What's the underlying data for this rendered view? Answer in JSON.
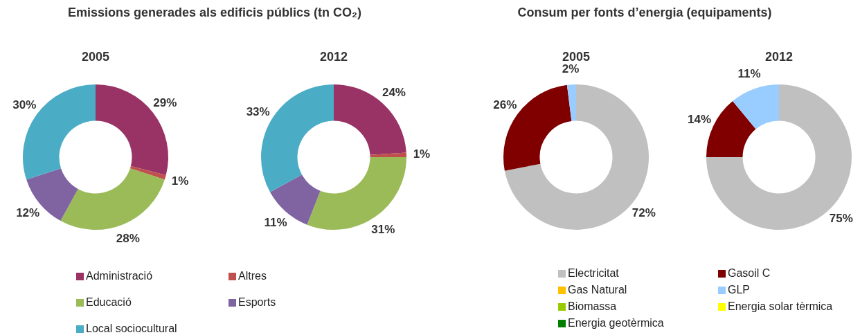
{
  "chart_data": [
    {
      "type": "donut",
      "title": "Emissions generades als edificis públics (tn CO₂)",
      "categories": [
        "Administració",
        "Altres",
        "Educació",
        "Esports",
        "Local sociocultural"
      ],
      "colors": [
        "#993366",
        "#c0504d",
        "#9bbb59",
        "#8064a2",
        "#4bacc6"
      ],
      "legend": "bottom",
      "series": [
        {
          "name": "2005",
          "values": [
            29,
            1,
            28,
            12,
            30
          ],
          "value_labels": [
            "29%",
            "1%",
            "28%",
            "12%",
            "30%"
          ]
        },
        {
          "name": "2012",
          "values": [
            24,
            1,
            31,
            11,
            33
          ],
          "value_labels": [
            "24%",
            "1%",
            "31%",
            "11%",
            "33%"
          ]
        }
      ]
    },
    {
      "type": "donut",
      "title": "Consum per fonts d’energia (equipaments)",
      "categories": [
        "Electricitat",
        "Gasoil C",
        "Gas Natural",
        "GLP",
        "Biomassa",
        "Energia solar tèrmica",
        "Energia geotèrmica"
      ],
      "colors": [
        "#c0c0c0",
        "#800000",
        "#ffc000",
        "#99ccff",
        "#99cc00",
        "#ffff00",
        "#008000"
      ],
      "legend": "bottom",
      "series": [
        {
          "name": "2005",
          "values": [
            72,
            26,
            0,
            2,
            0,
            0,
            0
          ],
          "value_labels": [
            "72%",
            "26%",
            null,
            "2%",
            null,
            null,
            null
          ]
        },
        {
          "name": "2012",
          "values": [
            75,
            14,
            0,
            11,
            0,
            0,
            0
          ],
          "value_labels": [
            "75%",
            "14%",
            null,
            "11%",
            null,
            null,
            null
          ]
        }
      ]
    }
  ]
}
